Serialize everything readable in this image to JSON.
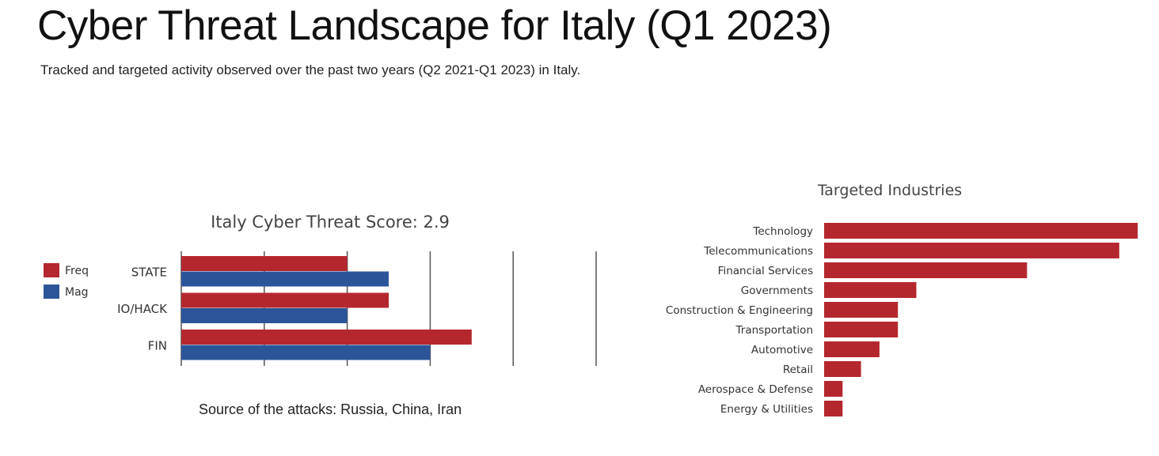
{
  "page": {
    "title": "Cyber Threat Landscape for Italy (Q1 2023)",
    "subtitle": "Tracked and targeted activity observed over the past two years (Q2 2021-Q1 2023) in Italy.",
    "source_line": "Source of the attacks:  Russia, China, Iran"
  },
  "colors": {
    "freq": "#b5272e",
    "mag": "#2c5599",
    "gridline": "#555555",
    "bar_fill": "#b5272e"
  },
  "chart_data": [
    {
      "type": "bar",
      "orientation": "horizontal",
      "title": "Italy Cyber Threat Score: 2.9",
      "xlabel": "",
      "ylabel": "",
      "categories": [
        "STATE",
        "IO/HACK",
        "FIN"
      ],
      "series": [
        {
          "name": "Freq",
          "values": [
            2,
            2.5,
            3.5
          ]
        },
        {
          "name": "Mag",
          "values": [
            2.5,
            2,
            3
          ]
        }
      ],
      "xlim": [
        0,
        5
      ],
      "grid": true,
      "legend": "left"
    },
    {
      "type": "bar",
      "orientation": "horizontal",
      "title": "Targeted Industries",
      "xlabel": "",
      "ylabel": "",
      "categories": [
        "Technology",
        "Telecommunications",
        "Financial Services",
        "Governments",
        "Construction & Engineering",
        "Transportation",
        "Automotive",
        "Retail",
        "Aerospace & Defense",
        "Energy & Utilities"
      ],
      "values": [
        17,
        16,
        11,
        5,
        4,
        4,
        3,
        2,
        1,
        1
      ],
      "xlim": [
        0,
        17
      ],
      "grid": false
    }
  ]
}
